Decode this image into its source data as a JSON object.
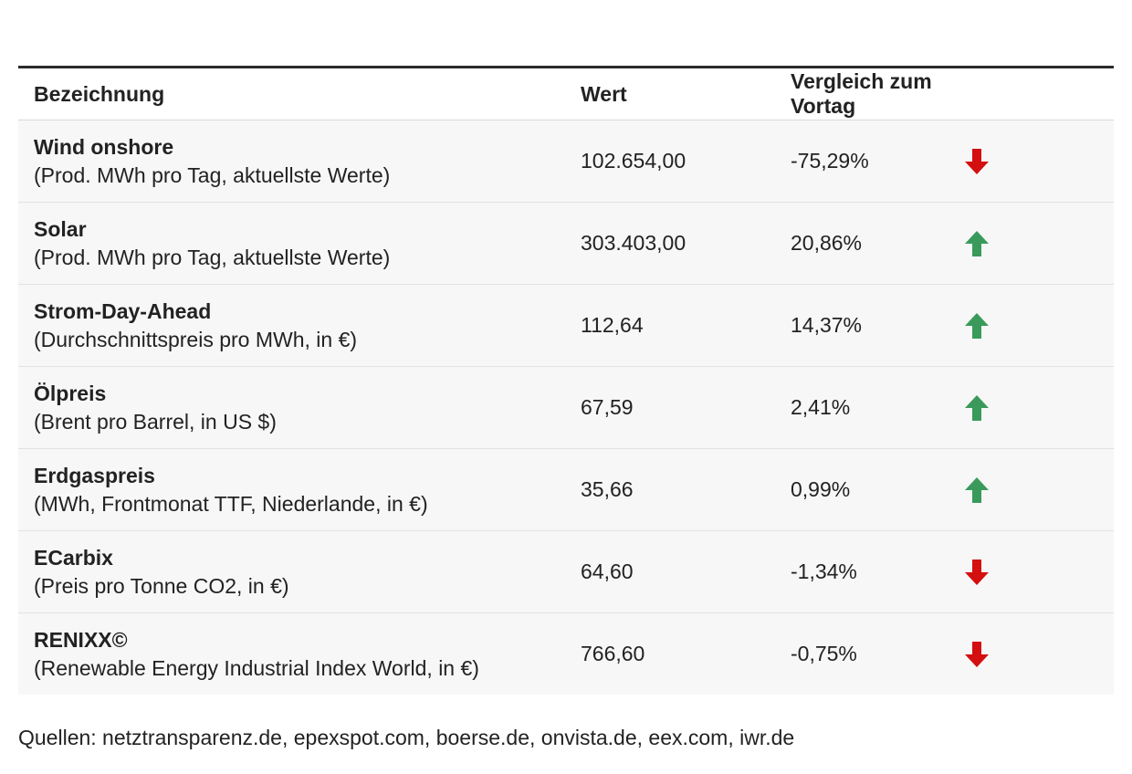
{
  "table": {
    "headers": {
      "name": "Bezeichnung",
      "value": "Wert",
      "change": "Vergleich zum Vortag"
    },
    "rows": [
      {
        "name": "Wind onshore",
        "sub": "(Prod. MWh pro Tag, aktuellste Werte)",
        "value": "102.654,00",
        "change": "-75,29%",
        "direction": "down"
      },
      {
        "name": "Solar",
        "sub": "(Prod. MWh pro Tag, aktuellste Werte)",
        "value": "303.403,00",
        "change": "20,86%",
        "direction": "up"
      },
      {
        "name": "Strom-Day-Ahead",
        "sub": "(Durchschnittspreis pro MWh, in €)",
        "value": "112,64",
        "change": "14,37%",
        "direction": "up"
      },
      {
        "name": "Ölpreis",
        "sub": "(Brent pro Barrel, in US $)",
        "value": "67,59",
        "change": "2,41%",
        "direction": "up"
      },
      {
        "name": "Erdgaspreis",
        "sub": "(MWh, Frontmonat TTF, Niederlande, in €)",
        "value": "35,66",
        "change": "0,99%",
        "direction": "up"
      },
      {
        "name": "ECarbix",
        "sub": "(Preis pro Tonne CO2, in €)",
        "value": "64,60",
        "change": "-1,34%",
        "direction": "down"
      },
      {
        "name": "RENIXX©",
        "sub": "(Renewable Energy Industrial Index World, in €)",
        "value": "766,60",
        "change": "-0,75%",
        "direction": "down"
      }
    ]
  },
  "colors": {
    "up": "#3a9a5b",
    "down": "#d40f0f"
  },
  "source": "Quellen: netztransparenz.de, epexspot.com, boerse.de, onvista.de, eex.com, iwr.de"
}
